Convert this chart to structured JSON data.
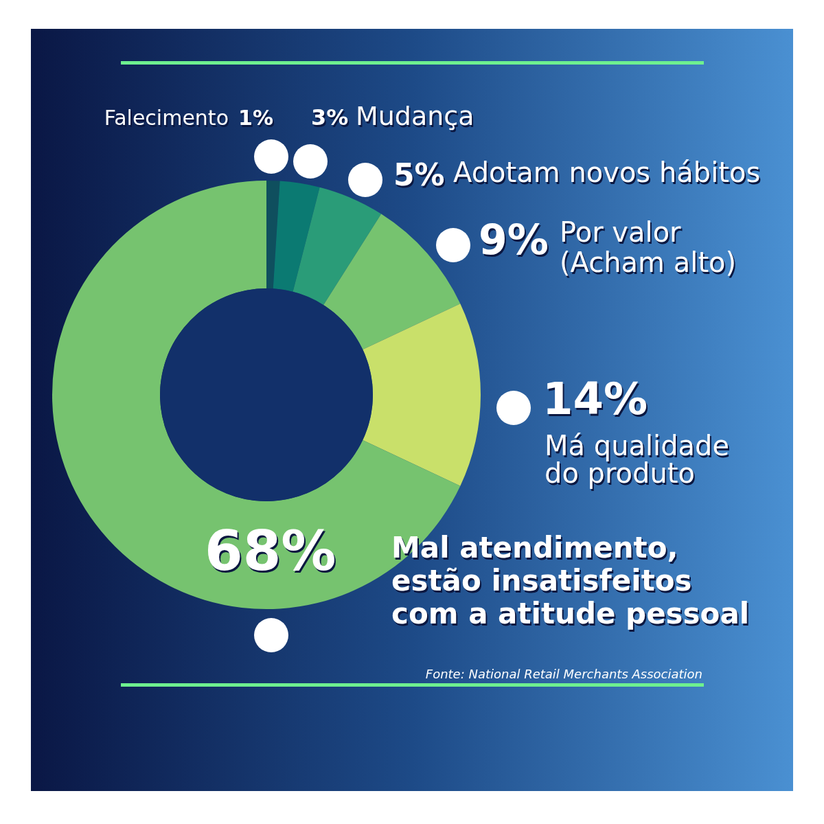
{
  "chart_data": {
    "type": "donut",
    "categories": [
      "Falecimento",
      "Mudança",
      "Adotam novos hábitos",
      "Por valor\n(Acham alto)",
      "Má qualidade\ndo produto",
      "Mal atendimento,\nestão insatisfeitos\ncom a atitude pessoal"
    ],
    "values": [
      1,
      3,
      5,
      9,
      14,
      68
    ],
    "value_labels": [
      "1%",
      "3%",
      "5%",
      "9%",
      "14%",
      "68%"
    ],
    "colors": [
      "#0f4f5e",
      "#0b7a72",
      "#2a9c78",
      "#76c36f",
      "#c9e06a",
      "#76c36f"
    ],
    "annotations": [
      "Fonte: National Retail Merchants Association"
    ]
  }
}
